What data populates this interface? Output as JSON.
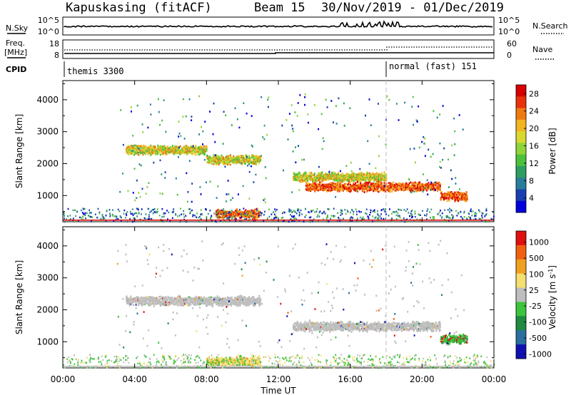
{
  "header": {
    "title": "Kapuskasing (fitACF)",
    "beam": "Beam 15",
    "date_range": "30/Nov/2019 - 01/Dec/2019"
  },
  "nsky_panel": {
    "left_label": "N.Sky",
    "right_label": "N.Search",
    "left_ticks": [
      "10^5",
      "10^0"
    ],
    "right_ticks": [
      "10^5",
      "10^0"
    ]
  },
  "freq_panel": {
    "left_label_1": "Freq.",
    "left_label_2": "[MHz]",
    "left_ticks": [
      "18",
      "8"
    ],
    "right_label": "Nave",
    "right_ticks": [
      "60",
      "0"
    ]
  },
  "cpid_panel": {
    "label": "CPID",
    "programs": [
      {
        "name": "themis 3300",
        "start_hour": 0
      },
      {
        "name": "normal (fast) 151",
        "start_hour": 18
      }
    ]
  },
  "x_axis": {
    "label": "Time UT",
    "ticks": [
      "00:00",
      "04:00",
      "08:00",
      "12:00",
      "16:00",
      "20:00",
      "00:00"
    ]
  },
  "chart_data": [
    {
      "type": "heatmap",
      "ylabel": "Slant Range [km]",
      "xlabel": "Time UT",
      "xlim_hours": [
        0,
        24
      ],
      "ylim": [
        180,
        4600
      ],
      "y_ticks": [
        1000,
        2000,
        3000,
        4000
      ],
      "colorbar": {
        "label": "Power [dB]",
        "ticks": [
          "4",
          "8",
          "12",
          "16",
          "20",
          "24",
          "28"
        ],
        "colors": [
          "#0000dd",
          "#1a3fb0",
          "#2a7d9a",
          "#2e9e60",
          "#4cc13c",
          "#8fd43a",
          "#d8d830",
          "#f3b51f",
          "#f07a12",
          "#e8320c",
          "#d80000"
        ]
      },
      "features": [
        {
          "from_h": 3.5,
          "to_h": 8,
          "range_km": 2450,
          "level": "high"
        },
        {
          "from_h": 8,
          "to_h": 11,
          "range_km": 2150,
          "level": "high"
        },
        {
          "from_h": 12.8,
          "to_h": 18,
          "range_km": 1600,
          "level": "high"
        },
        {
          "from_h": 13.5,
          "to_h": 21,
          "range_km": 1300,
          "level": "very high"
        },
        {
          "from_h": 21,
          "to_h": 22.5,
          "range_km": 1000,
          "level": "very high"
        },
        {
          "from_h": 8.5,
          "to_h": 11,
          "range_km": 450,
          "level": "very high"
        }
      ]
    },
    {
      "type": "heatmap",
      "ylabel": "Slant Range [km]",
      "xlabel": "Time UT",
      "xlim_hours": [
        0,
        24
      ],
      "ylim": [
        180,
        4600
      ],
      "y_ticks": [
        1000,
        2000,
        3000,
        4000
      ],
      "colorbar": {
        "label": "Velocity [m s^-1]",
        "ticks": [
          "1000",
          "500",
          "100",
          "25",
          "-25",
          "-100",
          "-500",
          "-1000"
        ],
        "colors": [
          "#1010b0",
          "#2a6fa0",
          "#1f8a40",
          "#3cc43c",
          "#bebebe",
          "#f4e070",
          "#f0a020",
          "#f06010",
          "#e01010"
        ]
      },
      "features": [
        {
          "from_h": 3.5,
          "to_h": 11,
          "range_km": 2300,
          "level": "ground scatter"
        },
        {
          "from_h": 12.8,
          "to_h": 21,
          "range_km": 1500,
          "level": "ground scatter"
        },
        {
          "from_h": 21,
          "to_h": 22.5,
          "range_km": 1100,
          "level": "positive"
        },
        {
          "from_h": 8,
          "to_h": 11,
          "range_km": 400,
          "level": "negative"
        }
      ]
    }
  ]
}
